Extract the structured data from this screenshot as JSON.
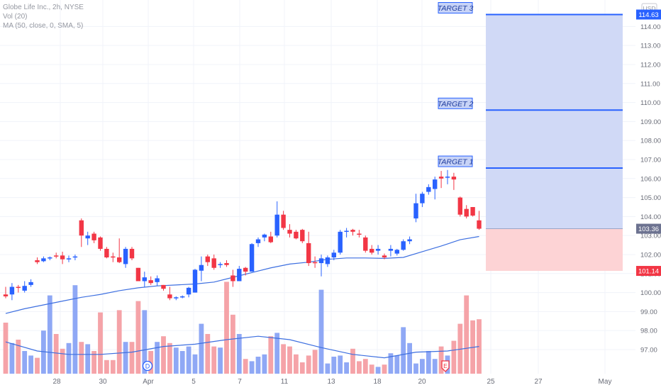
{
  "legend": {
    "symbol_line": "Globe Life Inc., 2h, NYSE",
    "volume_line": "Vol (20)",
    "ma_line": "MA (50, close, 0, SMA, 5)"
  },
  "axis": {
    "currency": "USD",
    "price_ticks": [
      "114.00",
      "113.00",
      "112.00",
      "111.00",
      "110.00",
      "109.00",
      "108.00",
      "107.00",
      "106.00",
      "105.00",
      "104.00",
      "103.00",
      "102.00",
      "101.00",
      "100.00",
      "99.00",
      "98.00",
      "97.00"
    ],
    "date_ticks": [
      "28",
      "30",
      "Apr",
      "5",
      "7",
      "11",
      "13",
      "18",
      "20",
      "25",
      "27",
      "May"
    ]
  },
  "price_labels": {
    "target3": "114.63",
    "current": "103.36",
    "stop": "101.14"
  },
  "targets": [
    {
      "label": "TARGET 3",
      "price": 114.63
    },
    {
      "label": "TARGET 2",
      "price": 109.6
    },
    {
      "label": "TARGET 1",
      "price": 106.55
    }
  ],
  "markers": {
    "dividend": "D",
    "earnings": "E"
  },
  "colors": {
    "up": "#2962ff",
    "down": "#f23645",
    "vol_up": "#8fa8f5",
    "vol_down": "#f5a3a8",
    "ma": "#3d6fe0",
    "target_zone": "#d0d9f6",
    "stop_zone": "#fdd3d5",
    "target_line": "#2962ff"
  },
  "chart_data": {
    "type": "candlestick",
    "title": "Globe Life Inc., 2h, NYSE",
    "ylim": [
      96.5,
      115.0
    ],
    "position": {
      "entry": 103.36,
      "stop": 101.14,
      "targets": [
        106.55,
        109.6,
        114.63
      ]
    },
    "candles": [
      [
        0,
        99.9,
        100.3,
        99.7,
        99.8
      ],
      [
        1,
        99.9,
        100.5,
        99.6,
        100.3
      ],
      [
        2,
        100.3,
        100.4,
        100.0,
        100.25
      ],
      [
        3,
        100.1,
        100.6,
        100.0,
        100.35
      ],
      [
        4,
        100.4,
        100.7,
        100.3,
        100.55
      ],
      [
        5,
        101.7,
        101.85,
        101.5,
        101.6
      ],
      [
        6,
        101.65,
        101.9,
        101.6,
        101.8
      ],
      [
        7,
        101.8,
        101.9,
        101.7,
        101.85
      ],
      [
        8,
        101.95,
        102.1,
        101.8,
        101.9
      ],
      [
        9,
        101.95,
        102.15,
        101.5,
        101.75
      ],
      [
        10,
        101.75,
        101.95,
        101.6,
        101.8
      ],
      [
        11,
        101.85,
        102.0,
        101.7,
        101.9
      ],
      [
        12,
        103.8,
        103.9,
        102.4,
        103.0
      ],
      [
        13,
        102.85,
        103.2,
        102.5,
        103.0
      ],
      [
        14,
        103.1,
        103.2,
        102.6,
        102.75
      ],
      [
        15,
        102.9,
        102.95,
        102.2,
        102.3
      ],
      [
        16,
        102.3,
        102.4,
        101.8,
        101.85
      ],
      [
        17,
        101.9,
        102.1,
        101.6,
        101.85
      ],
      [
        18,
        101.85,
        102.85,
        101.55,
        101.6
      ],
      [
        19,
        101.5,
        102.4,
        101.3,
        102.3
      ],
      [
        20,
        102.3,
        102.4,
        101.7,
        101.8
      ],
      [
        21,
        101.3,
        101.3,
        100.6,
        100.6
      ],
      [
        22,
        100.6,
        101.1,
        100.3,
        100.8
      ],
      [
        23,
        100.65,
        100.85,
        100.4,
        100.5
      ],
      [
        24,
        100.55,
        100.9,
        100.35,
        100.75
      ],
      [
        25,
        100.4,
        100.4,
        100.1,
        100.2
      ],
      [
        26,
        99.9,
        100.3,
        99.6,
        99.7
      ],
      [
        27,
        99.75,
        99.8,
        99.6,
        99.75
      ],
      [
        28,
        99.8,
        99.85,
        99.7,
        99.8
      ],
      [
        29,
        99.9,
        100.3,
        99.75,
        100.25
      ],
      [
        30,
        100.0,
        101.25,
        100.0,
        101.2
      ],
      [
        31,
        101.15,
        101.9,
        100.6,
        101.45
      ],
      [
        32,
        101.9,
        102.0,
        101.4,
        101.6
      ],
      [
        33,
        101.8,
        102.0,
        101.2,
        101.3
      ],
      [
        34,
        101.45,
        101.6,
        101.3,
        101.5
      ],
      [
        35,
        101.55,
        101.7,
        101.35,
        101.45
      ],
      [
        36,
        100.9,
        101.2,
        100.3,
        100.6
      ],
      [
        37,
        100.6,
        101.4,
        100.6,
        101.25
      ],
      [
        38,
        101.3,
        101.35,
        100.9,
        101.1
      ],
      [
        39,
        101.1,
        102.6,
        101.1,
        102.55
      ],
      [
        40,
        102.6,
        102.9,
        102.4,
        102.8
      ],
      [
        41,
        102.9,
        103.1,
        102.7,
        103.05
      ],
      [
        42,
        102.95,
        103.2,
        102.6,
        102.65
      ],
      [
        43,
        103.0,
        104.8,
        102.9,
        104.1
      ],
      [
        44,
        104.1,
        104.3,
        103.3,
        103.4
      ],
      [
        45,
        103.3,
        103.6,
        102.9,
        103.1
      ],
      [
        46,
        103.2,
        103.3,
        102.8,
        102.85
      ],
      [
        47,
        103.3,
        103.35,
        102.6,
        102.7
      ],
      [
        48,
        102.6,
        103.2,
        101.4,
        101.55
      ],
      [
        49,
        101.6,
        101.9,
        101.3,
        101.55
      ],
      [
        50,
        101.55,
        102.0,
        100.85,
        101.8
      ],
      [
        51,
        101.5,
        101.95,
        101.35,
        101.85
      ],
      [
        52,
        101.85,
        102.25,
        101.7,
        102.1
      ],
      [
        53,
        102.1,
        103.3,
        102.0,
        103.2
      ],
      [
        54,
        103.25,
        103.4,
        102.9,
        103.25
      ],
      [
        55,
        103.3,
        103.35,
        103.0,
        103.2
      ],
      [
        56,
        103.1,
        103.3,
        102.9,
        103.05
      ],
      [
        57,
        102.9,
        103.0,
        102.1,
        102.2
      ],
      [
        58,
        102.3,
        102.5,
        102.0,
        102.1
      ],
      [
        59,
        102.2,
        102.5,
        102.0,
        102.3
      ],
      [
        60,
        101.95,
        102.05,
        101.75,
        101.85
      ],
      [
        61,
        102.2,
        102.5,
        101.9,
        102.3
      ],
      [
        62,
        102.05,
        102.3,
        101.95,
        102.25
      ],
      [
        63,
        102.25,
        102.8,
        102.2,
        102.7
      ],
      [
        64,
        102.7,
        102.95,
        102.55,
        102.8
      ],
      [
        65,
        103.9,
        105.2,
        103.7,
        104.7
      ],
      [
        66,
        104.7,
        105.3,
        104.5,
        105.2
      ],
      [
        67,
        105.3,
        105.7,
        105.15,
        105.55
      ],
      [
        68,
        105.45,
        106.1,
        104.9,
        105.95
      ],
      [
        69,
        106.1,
        106.4,
        105.5,
        106.0
      ],
      [
        70,
        106.1,
        106.45,
        105.7,
        106.1
      ],
      [
        71,
        106.1,
        106.3,
        105.4,
        105.95
      ],
      [
        72,
        105.0,
        105.05,
        104.0,
        104.1
      ],
      [
        73,
        104.4,
        104.6,
        103.9,
        104.0
      ],
      [
        74,
        104.5,
        104.5,
        104.0,
        104.05
      ],
      [
        75,
        103.8,
        104.3,
        103.3,
        103.36
      ]
    ],
    "volume": [
      [
        0,
        0.45
      ],
      [
        1,
        0.27
      ],
      [
        2,
        0.3
      ],
      [
        3,
        0.2
      ],
      [
        4,
        0.16
      ],
      [
        5,
        0.14
      ],
      [
        6,
        0.38
      ],
      [
        7,
        0.69
      ],
      [
        8,
        0.35
      ],
      [
        9,
        0.22
      ],
      [
        10,
        0.27
      ],
      [
        11,
        0.78
      ],
      [
        12,
        0.28
      ],
      [
        13,
        0.26
      ],
      [
        14,
        0.2
      ],
      [
        15,
        0.54
      ],
      [
        16,
        0.12
      ],
      [
        17,
        0.12
      ],
      [
        18,
        0.56
      ],
      [
        19,
        0.28
      ],
      [
        20,
        0.28
      ],
      [
        21,
        0.64
      ],
      [
        22,
        0.56
      ],
      [
        23,
        0.2
      ],
      [
        24,
        0.28
      ],
      [
        25,
        0.33
      ],
      [
        26,
        0.27
      ],
      [
        27,
        0.23
      ],
      [
        28,
        0.2
      ],
      [
        29,
        0.24
      ],
      [
        30,
        0.17
      ],
      [
        31,
        0.44
      ],
      [
        32,
        0.35
      ],
      [
        33,
        0.24
      ],
      [
        34,
        0.23
      ],
      [
        35,
        0.81
      ],
      [
        36,
        0.52
      ],
      [
        37,
        0.35
      ],
      [
        38,
        0.13
      ],
      [
        39,
        0.11
      ],
      [
        40,
        0.15
      ],
      [
        41,
        0.17
      ],
      [
        42,
        0.33
      ],
      [
        43,
        0.36
      ],
      [
        44,
        0.26
      ],
      [
        45,
        0.24
      ],
      [
        46,
        0.17
      ],
      [
        47,
        0.1
      ],
      [
        48,
        0.16
      ],
      [
        49,
        0.21
      ],
      [
        50,
        0.74
      ],
      [
        51,
        0.09
      ],
      [
        52,
        0.15
      ],
      [
        53,
        0.16
      ],
      [
        54,
        0.1
      ],
      [
        55,
        0.22
      ],
      [
        56,
        0.11
      ],
      [
        57,
        0.13
      ],
      [
        58,
        0.08
      ],
      [
        59,
        0.06
      ],
      [
        60,
        0.08
      ],
      [
        61,
        0.18
      ],
      [
        62,
        0.16
      ],
      [
        63,
        0.41
      ],
      [
        64,
        0.27
      ],
      [
        65,
        0.09
      ],
      [
        66,
        0.13
      ],
      [
        67,
        0.2
      ],
      [
        68,
        0.13
      ],
      [
        69,
        0.24
      ],
      [
        70,
        0.16
      ],
      [
        71,
        0.29
      ],
      [
        72,
        0.44
      ],
      [
        73,
        0.69
      ],
      [
        74,
        0.47
      ],
      [
        75,
        0.48
      ]
    ],
    "moving_average": [
      [
        0,
        98.9
      ],
      [
        3,
        99.15
      ],
      [
        6,
        99.35
      ],
      [
        9,
        99.55
      ],
      [
        12,
        99.75
      ],
      [
        15,
        99.9
      ],
      [
        18,
        100.1
      ],
      [
        21,
        100.25
      ],
      [
        24,
        100.35
      ],
      [
        27,
        100.4
      ],
      [
        30,
        100.45
      ],
      [
        33,
        100.55
      ],
      [
        36,
        100.8
      ],
      [
        39,
        101.05
      ],
      [
        42,
        101.3
      ],
      [
        45,
        101.5
      ],
      [
        48,
        101.6
      ],
      [
        51,
        101.75
      ],
      [
        54,
        101.82
      ],
      [
        57,
        101.82
      ],
      [
        60,
        101.8
      ],
      [
        63,
        101.85
      ],
      [
        66,
        102.15
      ],
      [
        69,
        102.45
      ],
      [
        72,
        102.78
      ],
      [
        75,
        102.95
      ]
    ],
    "volume_ma": [
      [
        0,
        0.28
      ],
      [
        5,
        0.2
      ],
      [
        10,
        0.17
      ],
      [
        15,
        0.17
      ],
      [
        20,
        0.19
      ],
      [
        25,
        0.24
      ],
      [
        30,
        0.26
      ],
      [
        35,
        0.3
      ],
      [
        40,
        0.33
      ],
      [
        45,
        0.3
      ],
      [
        50,
        0.23
      ],
      [
        55,
        0.17
      ],
      [
        60,
        0.14
      ],
      [
        65,
        0.19
      ],
      [
        70,
        0.2
      ],
      [
        75,
        0.24
      ]
    ]
  }
}
